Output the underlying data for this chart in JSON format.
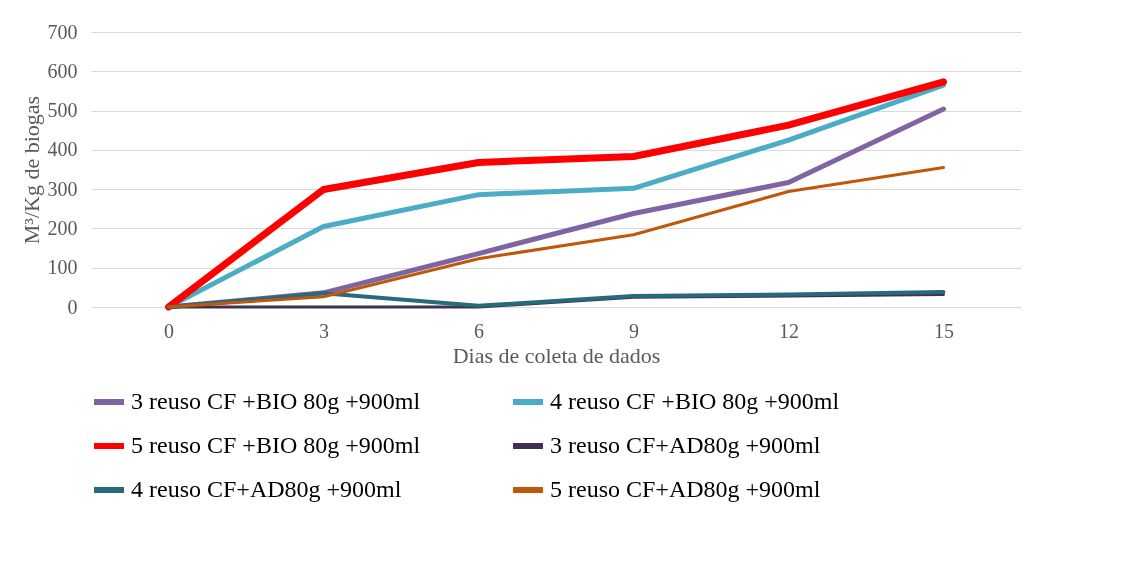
{
  "chart_data": {
    "type": "line",
    "xlabel": "Dias de coleta de dados",
    "ylabel": "M³/Kg de biogas",
    "categories": [
      "0",
      "3",
      "6",
      "9",
      "12",
      "15"
    ],
    "series": [
      {
        "name": "3 reuso CF +BIO 80g +900ml",
        "color": "#8064a2",
        "values": [
          0,
          36,
          136,
          238,
          317,
          504
        ]
      },
      {
        "name": "4 reuso CF +BIO 80g +900ml",
        "color": "#4bacc6",
        "values": [
          0,
          205,
          286,
          302,
          425,
          565
        ]
      },
      {
        "name": "5 reuso CF +BIO 80g +900ml",
        "color": "#ff0000",
        "values": [
          0,
          299,
          368,
          383,
          463,
          573
        ]
      },
      {
        "name": "3 reuso CF+AD80g +900ml",
        "color": "#403152",
        "values": [
          0,
          0,
          0,
          25,
          28,
          32
        ]
      },
      {
        "name": "4 reuso CF+AD80g +900ml",
        "color": "#276a7c",
        "values": [
          0,
          35,
          3,
          28,
          32,
          38
        ]
      },
      {
        "name": "5 reuso CF+AD80g +900ml",
        "color": "#c0580c",
        "values": [
          0,
          26,
          123,
          184,
          294,
          355
        ]
      }
    ],
    "ylim": [
      0,
      700
    ],
    "yticks": [
      0,
      100,
      200,
      300,
      400,
      500,
      600,
      700
    ],
    "grid": "y",
    "legend": "bottom",
    "marker": "none",
    "line_style": "solid"
  }
}
